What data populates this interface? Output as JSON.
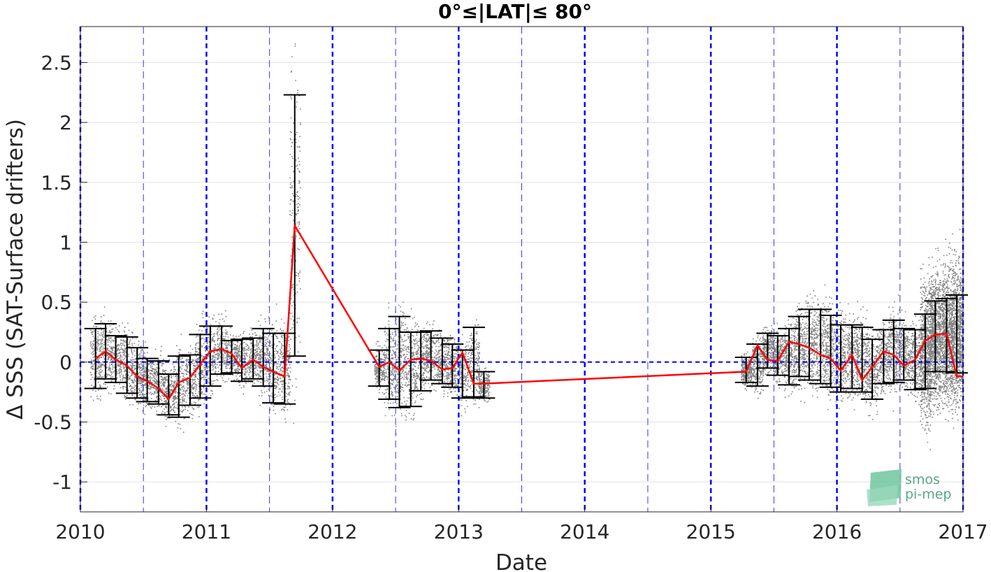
{
  "chart_data": {
    "type": "scatter",
    "title": "0°≤|LAT|≤ 80°",
    "xlabel": "Date",
    "ylabel": "Δ SSS (SAT-Surface drifters)",
    "xlim": [
      2010.0,
      2017.0
    ],
    "ylim": [
      -1.25,
      2.8
    ],
    "x_ticks": [
      2010,
      2011,
      2012,
      2013,
      2014,
      2015,
      2016,
      2017
    ],
    "x_tick_labels": [
      "2010",
      "2011",
      "2012",
      "2013",
      "2014",
      "2015",
      "2016",
      "2017"
    ],
    "y_ticks": [
      -1,
      -0.5,
      0,
      0.5,
      1,
      1.5,
      2,
      2.5
    ],
    "y_tick_labels": [
      "-1",
      "-0.5",
      "0",
      "0.5",
      "1",
      "1.5",
      "2",
      "2.5"
    ],
    "grid": "horizontal",
    "year_lines": [
      2010,
      2011,
      2012,
      2013,
      2014,
      2015,
      2016,
      2017
    ],
    "half_year_lines": [
      2010.5,
      2011.5,
      2012.5,
      2013.5,
      2014.5,
      2015.5,
      2016.5
    ],
    "zero_line": 0,
    "colors": {
      "scatter": "#808080",
      "mean_line": "#ff0000",
      "error_bars": "#000000",
      "year_lines": "#0000ff",
      "half_year_lines": "#3333ff",
      "grid": "#e0e0e0"
    },
    "series": [
      {
        "type": "line",
        "x": [
          2010.12,
          2010.2,
          2010.28,
          2010.37,
          2010.45,
          2010.53,
          2010.62,
          2010.7,
          2010.78,
          2010.87,
          2010.95,
          2011.03,
          2011.12,
          2011.2,
          2011.28,
          2011.37,
          2011.45,
          2011.53,
          2011.62,
          2011.7,
          2012.37,
          2012.45,
          2012.53,
          2012.62,
          2012.7,
          2012.78,
          2012.87,
          2012.95,
          2013.03,
          2013.12,
          2013.2,
          2015.28,
          2015.37,
          2015.45,
          2015.53,
          2015.62,
          2015.7,
          2015.78,
          2015.87,
          2015.95,
          2016.03,
          2016.12,
          2016.2,
          2016.28,
          2016.37,
          2016.45,
          2016.53,
          2016.62,
          2016.7,
          2016.78,
          2016.87,
          2016.95,
          2017.0
        ],
        "y": [
          0.03,
          0.09,
          0.02,
          -0.03,
          -0.12,
          -0.16,
          -0.22,
          -0.31,
          -0.17,
          -0.13,
          -0.02,
          0.09,
          0.11,
          0.07,
          -0.05,
          0.02,
          -0.04,
          -0.08,
          -0.12,
          1.14,
          -0.04,
          0.0,
          -0.07,
          0.02,
          0.03,
          0.01,
          -0.06,
          -0.05,
          0.08,
          -0.18,
          -0.18,
          -0.08,
          0.14,
          0.02,
          0.01,
          0.17,
          0.15,
          0.12,
          0.06,
          0.03,
          -0.07,
          0.06,
          -0.15,
          -0.04,
          0.09,
          0.06,
          -0.03,
          0.02,
          0.18,
          0.23,
          0.24,
          -0.12,
          -0.12
        ]
      },
      {
        "type": "errorbar",
        "x": [
          2010.12,
          2010.2,
          2010.28,
          2010.37,
          2010.45,
          2010.53,
          2010.62,
          2010.7,
          2010.78,
          2010.87,
          2010.95,
          2011.03,
          2011.12,
          2011.2,
          2011.28,
          2011.37,
          2011.45,
          2011.53,
          2011.62,
          2011.7,
          2012.37,
          2012.45,
          2012.53,
          2012.62,
          2012.7,
          2012.78,
          2012.87,
          2012.95,
          2013.03,
          2013.12,
          2013.2,
          2015.28,
          2015.37,
          2015.45,
          2015.53,
          2015.62,
          2015.7,
          2015.78,
          2015.87,
          2015.95,
          2016.03,
          2016.12,
          2016.2,
          2016.28,
          2016.37,
          2016.45,
          2016.53,
          2016.62,
          2016.7,
          2016.78,
          2016.87,
          2016.95
        ],
        "low": [
          -0.22,
          -0.14,
          -0.17,
          -0.26,
          -0.3,
          -0.33,
          -0.35,
          -0.44,
          -0.46,
          -0.36,
          -0.3,
          -0.2,
          -0.1,
          -0.09,
          -0.16,
          -0.14,
          -0.2,
          -0.34,
          -0.35,
          0.05,
          -0.2,
          -0.31,
          -0.38,
          -0.37,
          -0.24,
          -0.15,
          -0.18,
          -0.21,
          -0.3,
          -0.29,
          -0.3,
          -0.17,
          -0.2,
          -0.05,
          -0.11,
          -0.19,
          -0.12,
          -0.15,
          -0.18,
          -0.21,
          -0.25,
          -0.22,
          -0.25,
          -0.31,
          -0.18,
          -0.17,
          -0.15,
          -0.23,
          -0.22,
          -0.08,
          -0.08,
          -0.09
        ],
        "high": [
          0.28,
          0.32,
          0.22,
          0.21,
          0.12,
          0.03,
          0.01,
          -0.1,
          0.05,
          0.06,
          0.23,
          0.3,
          0.3,
          0.18,
          0.19,
          0.2,
          0.28,
          0.24,
          0.24,
          2.23,
          0.1,
          0.28,
          0.38,
          0.25,
          0.25,
          0.26,
          0.2,
          0.15,
          0.1,
          0.29,
          -0.08,
          0.04,
          0.15,
          0.24,
          0.22,
          0.28,
          0.38,
          0.44,
          0.44,
          0.39,
          0.31,
          0.31,
          0.29,
          0.19,
          0.27,
          0.35,
          0.28,
          0.27,
          0.4,
          0.51,
          0.53,
          0.56
        ]
      }
    ]
  },
  "logo": {
    "line1": "smos",
    "line2": "pi-mep"
  }
}
